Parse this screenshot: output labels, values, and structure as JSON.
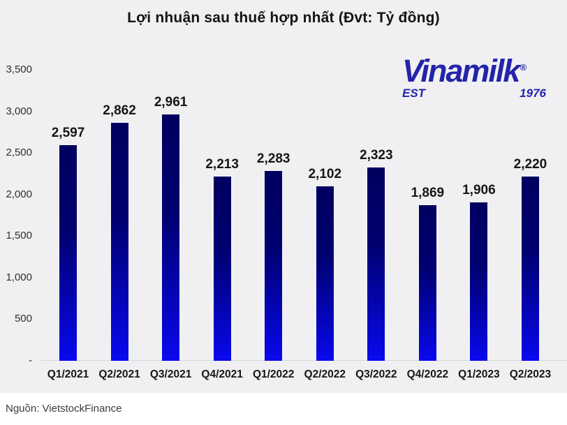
{
  "title": "Lợi nhuận sau thuế hợp nhất (Đvt: Tỷ đồng)",
  "logo": {
    "brand": "Vinamilk",
    "registered": "®",
    "est": "EST",
    "year": "1976",
    "color": "#2424aa"
  },
  "source": "Nguồn: VietstockFinance",
  "colors": {
    "chart_background": "#f0f0f2",
    "footer_background": "#ffffff",
    "bar_gradient_top": "#000060",
    "bar_gradient_bottom": "#0a0af0",
    "title_text": "#141414",
    "axis_text": "#2e2e2e",
    "baseline": "#d8d8da"
  },
  "chart_data": {
    "type": "bar",
    "title": "Lợi nhuận sau thuế hợp nhất (Đvt: Tỷ đồng)",
    "xlabel": "",
    "ylabel": "",
    "unit": "Tỷ đồng",
    "categories": [
      "Q1/2021",
      "Q2/2021",
      "Q3/2021",
      "Q4/2021",
      "Q1/2022",
      "Q2/2022",
      "Q3/2022",
      "Q4/2022",
      "Q1/2023",
      "Q2/2023"
    ],
    "values": [
      2597,
      2862,
      2961,
      2213,
      2283,
      2102,
      2323,
      1869,
      1906,
      2220
    ],
    "value_labels": [
      "2,597",
      "2,862",
      "2,961",
      "2,213",
      "2,283",
      "2,102",
      "2,323",
      "1,869",
      "1,906",
      "2,220"
    ],
    "ylim": [
      0,
      3500
    ],
    "ytick_values": [
      3500,
      3000,
      2500,
      2000,
      1500,
      1000,
      500,
      0
    ],
    "ytick_labels": [
      "3,500",
      "3,000",
      "2,500",
      "2,000",
      "1,500",
      "1,000",
      "500",
      "-"
    ],
    "grid": false,
    "legend": false,
    "data_labels": true
  }
}
